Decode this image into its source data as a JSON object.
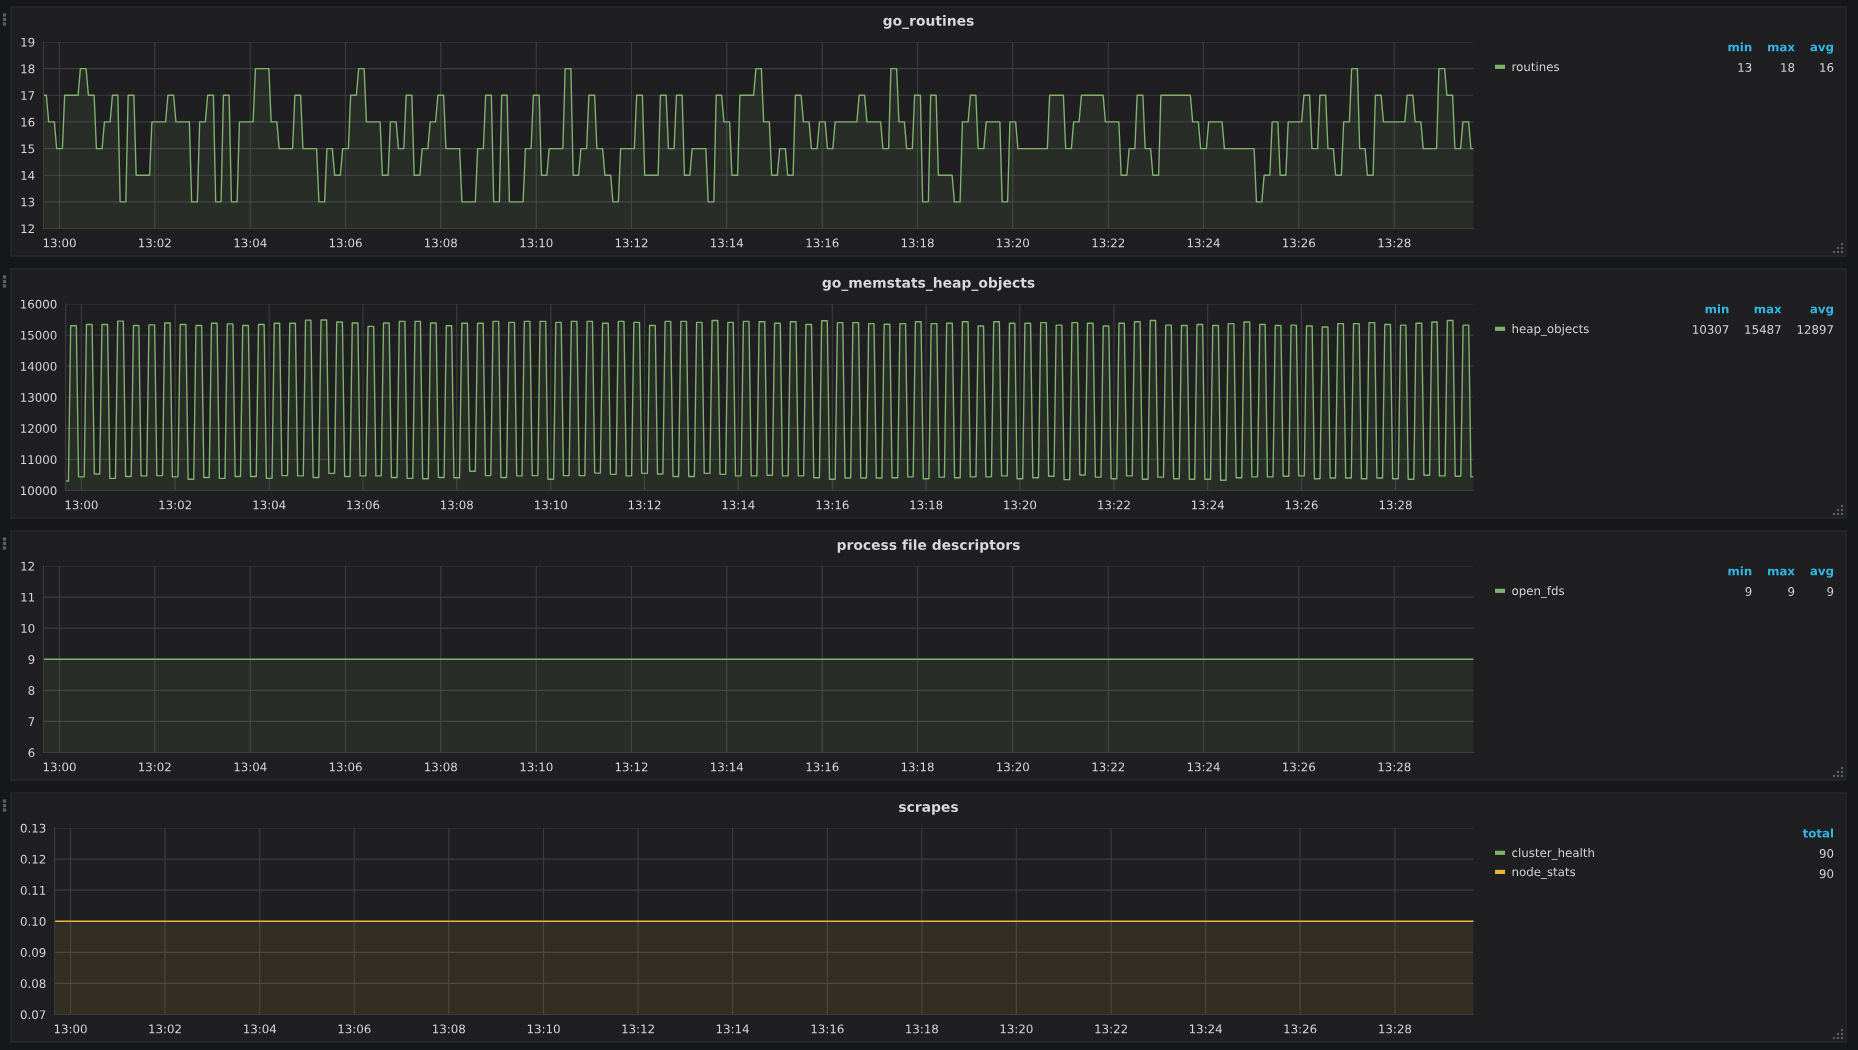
{
  "chart_data": [
    {
      "type": "area",
      "title": "go_routines",
      "xlim": [
        12.9944,
        13.4944
      ],
      "ylim": [
        12,
        19
      ],
      "yticks": [
        12,
        13,
        14,
        15,
        16,
        17,
        18,
        19
      ],
      "grid": true,
      "legend": "right",
      "xticks": [
        {
          "value": 13.0,
          "label": "13:00"
        },
        {
          "value": 13.0333,
          "label": "13:02"
        },
        {
          "value": 13.0667,
          "label": "13:04"
        },
        {
          "value": 13.1,
          "label": "13:06"
        },
        {
          "value": 13.1333,
          "label": "13:08"
        },
        {
          "value": 13.1667,
          "label": "13:10"
        },
        {
          "value": 13.2,
          "label": "13:12"
        },
        {
          "value": 13.2333,
          "label": "13:14"
        },
        {
          "value": 13.2667,
          "label": "13:16"
        },
        {
          "value": 13.3,
          "label": "13:18"
        },
        {
          "value": 13.3333,
          "label": "13:20"
        },
        {
          "value": 13.3667,
          "label": "13:22"
        },
        {
          "value": 13.4,
          "label": "13:24"
        },
        {
          "value": 13.4333,
          "label": "13:26"
        },
        {
          "value": 13.4667,
          "label": "13:28"
        }
      ],
      "x": [
        12.9944,
        12.9954,
        12.9962,
        12.9982,
        12.999,
        13.001,
        13.0018,
        13.0065,
        13.0073,
        13.0093,
        13.0101,
        13.0121,
        13.0129,
        13.0149,
        13.0157,
        13.0177,
        13.0185,
        13.0204,
        13.0212,
        13.0232,
        13.024,
        13.026,
        13.0268,
        13.0315,
        13.0323,
        13.0371,
        13.0379,
        13.0399,
        13.0407,
        13.0454,
        13.0462,
        13.0482,
        13.049,
        13.051,
        13.0518,
        13.0538,
        13.0546,
        13.0565,
        13.0573,
        13.0593,
        13.0601,
        13.0621,
        13.0629,
        13.0677,
        13.0685,
        13.0732,
        13.074,
        13.076,
        13.0768,
        13.0815,
        13.0823,
        13.0843,
        13.0851,
        13.0899,
        13.0907,
        13.0927,
        13.0935,
        13.0954,
        13.0962,
        13.0982,
        13.099,
        13.101,
        13.1018,
        13.1038,
        13.1046,
        13.1065,
        13.1073,
        13.1121,
        13.1129,
        13.1149,
        13.1157,
        13.1177,
        13.1185,
        13.1204,
        13.1212,
        13.1232,
        13.124,
        13.126,
        13.1268,
        13.1288,
        13.1296,
        13.1315,
        13.1323,
        13.1343,
        13.1351,
        13.1399,
        13.1407,
        13.1454,
        13.1462,
        13.1482,
        13.149,
        13.151,
        13.1518,
        13.1538,
        13.1546,
        13.1565,
        13.1573,
        13.1621,
        13.1629,
        13.1649,
        13.1657,
        13.1677,
        13.1685,
        13.1704,
        13.1712,
        13.176,
        13.1768,
        13.1788,
        13.1796,
        13.1815,
        13.1823,
        13.1843,
        13.1851,
        13.1871,
        13.1879,
        13.1899,
        13.1907,
        13.1927,
        13.1935,
        13.1954,
        13.1962,
        13.201,
        13.2018,
        13.2038,
        13.2046,
        13.2093,
        13.2101,
        13.2121,
        13.2129,
        13.2149,
        13.2157,
        13.2177,
        13.2185,
        13.2204,
        13.2212,
        13.226,
        13.2268,
        13.2288,
        13.2296,
        13.2315,
        13.2323,
        13.2343,
        13.2351,
        13.2371,
        13.2379,
        13.2427,
        13.2435,
        13.2454,
        13.2462,
        13.2482,
        13.249,
        13.251,
        13.2518,
        13.2538,
        13.2546,
        13.2565,
        13.2573,
        13.2593,
        13.2601,
        13.2621,
        13.2629,
        13.2649,
        13.2657,
        13.2677,
        13.2685,
        13.2704,
        13.2712,
        13.2788,
        13.2796,
        13.2815,
        13.2823,
        13.2871,
        13.2879,
        13.2899,
        13.2907,
        13.2927,
        13.2935,
        13.2954,
        13.2962,
        13.2982,
        13.299,
        13.301,
        13.3018,
        13.3038,
        13.3046,
        13.3065,
        13.3073,
        13.3121,
        13.3129,
        13.3149,
        13.3157,
        13.3177,
        13.3185,
        13.3204,
        13.3212,
        13.3232,
        13.324,
        13.3288,
        13.3296,
        13.3315,
        13.3323,
        13.3343,
        13.3351,
        13.3454,
        13.3462,
        13.351,
        13.3518,
        13.3538,
        13.3546,
        13.3565,
        13.3573,
        13.3649,
        13.3657,
        13.3704,
        13.3712,
        13.3732,
        13.374,
        13.376,
        13.3768,
        13.3788,
        13.3796,
        13.3815,
        13.3823,
        13.3843,
        13.3851,
        13.3954,
        13.3962,
        13.3982,
        13.399,
        13.401,
        13.4018,
        13.4065,
        13.4073,
        13.4177,
        13.4185,
        13.4204,
        13.4212,
        13.4232,
        13.424,
        13.426,
        13.4268,
        13.4288,
        13.4296,
        13.4343,
        13.4351,
        13.4371,
        13.4379,
        13.4399,
        13.4407,
        13.4427,
        13.4435,
        13.4454,
        13.4462,
        13.4482,
        13.449,
        13.451,
        13.4518,
        13.4538,
        13.4546,
        13.4565,
        13.4573,
        13.4593,
        13.4601,
        13.4621,
        13.4629,
        13.4704,
        13.4712,
        13.4732,
        13.474,
        13.476,
        13.4768,
        13.4815,
        13.4823,
        13.4843,
        13.4851,
        13.4871,
        13.4879,
        13.4899,
        13.4907,
        13.4927,
        13.4935,
        13.4944
      ],
      "series": [
        {
          "name": "routines",
          "color": "#7eb26d",
          "values": [
            17,
            17,
            16,
            16,
            15,
            15,
            17,
            17,
            18,
            18,
            17,
            17,
            15,
            15,
            16,
            16,
            17,
            17,
            13,
            13,
            17,
            17,
            14,
            14,
            16,
            16,
            17,
            17,
            16,
            16,
            13,
            13,
            16,
            16,
            17,
            17,
            13,
            13,
            17,
            17,
            13,
            13,
            16,
            16,
            18,
            18,
            16,
            16,
            15,
            15,
            17,
            17,
            15,
            15,
            13,
            13,
            15,
            15,
            14,
            14,
            15,
            15,
            17,
            17,
            18,
            18,
            16,
            16,
            14,
            14,
            16,
            16,
            15,
            15,
            17,
            17,
            14,
            14,
            15,
            15,
            16,
            16,
            17,
            17,
            15,
            15,
            13,
            13,
            15,
            15,
            17,
            17,
            13,
            13,
            17,
            17,
            13,
            13,
            15,
            15,
            17,
            17,
            14,
            14,
            15,
            15,
            18,
            18,
            14,
            14,
            15,
            15,
            17,
            17,
            15,
            15,
            14,
            14,
            13,
            13,
            15,
            15,
            17,
            17,
            14,
            14,
            17,
            17,
            15,
            15,
            17,
            17,
            14,
            14,
            15,
            15,
            13,
            13,
            17,
            17,
            16,
            16,
            14,
            14,
            17,
            17,
            18,
            18,
            16,
            16,
            14,
            14,
            15,
            15,
            14,
            14,
            17,
            17,
            16,
            16,
            15,
            15,
            16,
            16,
            15,
            15,
            16,
            16,
            17,
            17,
            16,
            16,
            15,
            15,
            18,
            18,
            16,
            16,
            15,
            15,
            17,
            17,
            13,
            13,
            17,
            17,
            14,
            14,
            13,
            13,
            16,
            16,
            17,
            17,
            15,
            15,
            16,
            16,
            13,
            13,
            16,
            16,
            15,
            15,
            17,
            17,
            15,
            15,
            16,
            16,
            17,
            17,
            16,
            16,
            14,
            14,
            15,
            15,
            17,
            17,
            15,
            15,
            14,
            14,
            17,
            17,
            16,
            16,
            15,
            15,
            16,
            16,
            15,
            15,
            13,
            13,
            14,
            14,
            16,
            16,
            14,
            14,
            16,
            16,
            17,
            17,
            15,
            15,
            17,
            17,
            15,
            15,
            14,
            14,
            16,
            16,
            18,
            18,
            15,
            15,
            14,
            14,
            17,
            17,
            16,
            16,
            17,
            17,
            16,
            16,
            15,
            15,
            18,
            18,
            17,
            17,
            15,
            15,
            16,
            16,
            15,
            15
          ]
        }
      ],
      "annotations": [
        "min",
        "max",
        "avg",
        "13",
        "18",
        "16"
      ]
    },
    {
      "type": "area",
      "title": "go_memstats_heap_objects",
      "xlim": [
        12.9944,
        13.4944
      ],
      "ylim": [
        10000,
        16000
      ],
      "yticks": [
        10000,
        11000,
        12000,
        13000,
        14000,
        15000,
        16000
      ],
      "grid": true,
      "legend": "right",
      "xticks": [
        {
          "value": 13.0,
          "label": "13:00"
        },
        {
          "value": 13.0333,
          "label": "13:02"
        },
        {
          "value": 13.0667,
          "label": "13:04"
        },
        {
          "value": 13.1,
          "label": "13:06"
        },
        {
          "value": 13.1333,
          "label": "13:08"
        },
        {
          "value": 13.1667,
          "label": "13:10"
        },
        {
          "value": 13.2,
          "label": "13:12"
        },
        {
          "value": 13.2333,
          "label": "13:14"
        },
        {
          "value": 13.2667,
          "label": "13:16"
        },
        {
          "value": 13.3,
          "label": "13:18"
        },
        {
          "value": 13.3333,
          "label": "13:20"
        },
        {
          "value": 13.3667,
          "label": "13:22"
        },
        {
          "value": 13.4,
          "label": "13:24"
        },
        {
          "value": 13.4333,
          "label": "13:26"
        },
        {
          "value": 13.4667,
          "label": "13:28"
        }
      ],
      "x": [
        12.9944,
        12.9954,
        12.9962,
        12.9982,
        12.999,
        13.001,
        13.0018,
        13.0038,
        13.0046,
        13.0065,
        13.0073,
        13.0093,
        13.0101,
        13.0121,
        13.0129,
        13.0149,
        13.0157,
        13.0177,
        13.0185,
        13.0204,
        13.0212,
        13.0232,
        13.024,
        13.026,
        13.0268,
        13.0288,
        13.0296,
        13.0315,
        13.0323,
        13.0343,
        13.0351,
        13.0371,
        13.0379,
        13.0399,
        13.0407,
        13.0427,
        13.0435,
        13.0454,
        13.0462,
        13.0482,
        13.049,
        13.051,
        13.0518,
        13.0538,
        13.0546,
        13.0565,
        13.0573,
        13.0593,
        13.0601,
        13.0621,
        13.0629,
        13.0649,
        13.0657,
        13.0677,
        13.0685,
        13.0704,
        13.0712,
        13.0732,
        13.074,
        13.076,
        13.0768,
        13.0788,
        13.0796,
        13.0815,
        13.0823,
        13.0843,
        13.0851,
        13.0871,
        13.0879,
        13.0899,
        13.0907,
        13.0927,
        13.0935,
        13.0954,
        13.0962,
        13.0982,
        13.099,
        13.101,
        13.1018,
        13.1038,
        13.1046,
        13.1065,
        13.1073,
        13.1093,
        13.1101,
        13.1121,
        13.1129,
        13.1149,
        13.1157,
        13.1177,
        13.1185,
        13.1204,
        13.1212,
        13.1232,
        13.124,
        13.126,
        13.1268,
        13.1288,
        13.1296,
        13.1315,
        13.1323,
        13.1343,
        13.1351,
        13.1371,
        13.1379,
        13.1399,
        13.1407,
        13.1427,
        13.1435,
        13.1454,
        13.1462,
        13.1482,
        13.149,
        13.151,
        13.1518,
        13.1538,
        13.1546,
        13.1565,
        13.1573,
        13.1593,
        13.1601,
        13.1621,
        13.1629,
        13.1649,
        13.1657,
        13.1677,
        13.1685,
        13.1704,
        13.1712,
        13.1732,
        13.174,
        13.176,
        13.1768,
        13.1788,
        13.1796,
        13.1815,
        13.1823,
        13.1843,
        13.1851,
        13.1871,
        13.1879,
        13.1899,
        13.1907,
        13.1927,
        13.1935,
        13.1954,
        13.1962,
        13.1982,
        13.199,
        13.201,
        13.2018,
        13.2038,
        13.2046,
        13.2065,
        13.2073,
        13.2093,
        13.2101,
        13.2121,
        13.2129,
        13.2149,
        13.2157,
        13.2177,
        13.2185,
        13.2204,
        13.2212,
        13.2232,
        13.224,
        13.226,
        13.2268,
        13.2288,
        13.2296,
        13.2315,
        13.2323,
        13.2343,
        13.2351,
        13.2371,
        13.2379,
        13.2399,
        13.2407,
        13.2427,
        13.2435,
        13.2454,
        13.2462,
        13.2482,
        13.249,
        13.251,
        13.2518,
        13.2538,
        13.2546,
        13.2565,
        13.2573,
        13.2593,
        13.2601,
        13.2621,
        13.2629,
        13.2649,
        13.2657,
        13.2677,
        13.2685,
        13.2704,
        13.2712,
        13.2732,
        13.274,
        13.276,
        13.2768,
        13.2788,
        13.2796,
        13.2815,
        13.2823,
        13.2843,
        13.2851,
        13.2871,
        13.2879,
        13.2899,
        13.2907,
        13.2927,
        13.2935,
        13.2954,
        13.2962,
        13.2982,
        13.299,
        13.301,
        13.3018,
        13.3038,
        13.3046,
        13.3065,
        13.3073,
        13.3093,
        13.3101,
        13.3121,
        13.3129,
        13.3149,
        13.3157,
        13.3177,
        13.3185,
        13.3204,
        13.3212,
        13.3232,
        13.324,
        13.326,
        13.3268,
        13.3288,
        13.3296,
        13.3315,
        13.3323,
        13.3343,
        13.3351,
        13.3371,
        13.3379,
        13.3399,
        13.3407,
        13.3427,
        13.3435,
        13.3454,
        13.3462,
        13.3482,
        13.349,
        13.351,
        13.3518,
        13.3538,
        13.3546,
        13.3565,
        13.3573,
        13.3593,
        13.3601,
        13.3621,
        13.3629,
        13.3649,
        13.3657,
        13.3677,
        13.3685,
        13.3704,
        13.3712,
        13.3732,
        13.374,
        13.376,
        13.3768,
        13.3788,
        13.3796,
        13.3815,
        13.3823,
        13.3843,
        13.3851,
        13.3871,
        13.3879,
        13.3899,
        13.3907,
        13.3927,
        13.3935,
        13.3954,
        13.3962,
        13.3982,
        13.399,
        13.401,
        13.4018,
        13.4038,
        13.4046,
        13.4065,
        13.4073,
        13.4093,
        13.4101,
        13.4121,
        13.4129,
        13.4149,
        13.4157,
        13.4177,
        13.4185,
        13.4204,
        13.4212,
        13.4232,
        13.424,
        13.426,
        13.4268,
        13.4288,
        13.4296,
        13.4315,
        13.4323,
        13.4343,
        13.4351,
        13.4371,
        13.4379,
        13.4399,
        13.4407,
        13.4427,
        13.4435,
        13.4454,
        13.4462,
        13.4482,
        13.449,
        13.451,
        13.4518,
        13.4538,
        13.4546,
        13.4565,
        13.4573,
        13.4593,
        13.4601,
        13.4621,
        13.4629,
        13.4649,
        13.4657,
        13.4677,
        13.4685,
        13.4704,
        13.4712,
        13.4732,
        13.474,
        13.476,
        13.4768,
        13.4788,
        13.4796,
        13.4815,
        13.4823,
        13.4843,
        13.4851,
        13.4871,
        13.4879,
        13.4899,
        13.4907,
        13.4927,
        13.4935,
        13.4944
      ],
      "series": [
        {
          "name": "heap_objects",
          "color": "#7eb26d",
          "values": [
            10307,
            10307,
            15300,
            15300,
            10440,
            10440,
            15340,
            15340,
            10530,
            10530,
            15340,
            15340,
            10390,
            10390,
            15450,
            15450,
            10450,
            10450,
            15310,
            15310,
            10470,
            10470,
            15330,
            15330,
            10480,
            10480,
            15390,
            15390,
            10440,
            10440,
            15340,
            15340,
            10360,
            10360,
            15310,
            15310,
            10420,
            10420,
            15380,
            15380,
            10390,
            10390,
            15360,
            15360,
            10450,
            10450,
            15310,
            15310,
            10450,
            10450,
            15340,
            15340,
            10390,
            10390,
            15380,
            15380,
            10480,
            10480,
            15380,
            15380,
            10470,
            10470,
            15480,
            15480,
            10420,
            10420,
            15487,
            15487,
            10550,
            10550,
            15420,
            15420,
            10450,
            10450,
            15390,
            15390,
            10470,
            10470,
            15280,
            15280,
            10470,
            10470,
            15390,
            15390,
            10420,
            10420,
            15440,
            15440,
            10390,
            10390,
            15440,
            15440,
            10380,
            10380,
            15390,
            15390,
            10420,
            10420,
            15300,
            15300,
            10410,
            10410,
            15380,
            15380,
            10620,
            10620,
            15380,
            15380,
            10480,
            10480,
            15440,
            15440,
            10420,
            10420,
            15410,
            15410,
            10470,
            10470,
            15440,
            15440,
            10480,
            10480,
            15440,
            15440,
            10360,
            10360,
            15410,
            15410,
            10480,
            10480,
            15440,
            15440,
            10480,
            10480,
            15440,
            15440,
            10560,
            10560,
            15380,
            15380,
            10520,
            10520,
            15440,
            15440,
            10470,
            10470,
            15410,
            15410,
            10550,
            10550,
            15310,
            15310,
            10530,
            10530,
            15440,
            15440,
            10450,
            10450,
            15440,
            15440,
            10450,
            10450,
            15410,
            15410,
            10550,
            10550,
            15470,
            15470,
            10520,
            10520,
            15410,
            15410,
            10470,
            10470,
            15440,
            15440,
            10470,
            10470,
            15430,
            15430,
            10490,
            10490,
            15380,
            15380,
            10470,
            10470,
            15430,
            15430,
            10470,
            10470,
            15340,
            15340,
            10410,
            10410,
            15460,
            15460,
            10360,
            10360,
            15400,
            15400,
            10400,
            10400,
            15400,
            15400,
            10400,
            10400,
            15370,
            15370,
            10400,
            10400,
            15350,
            15350,
            10410,
            10410,
            15370,
            15370,
            10440,
            10440,
            15430,
            15430,
            10380,
            10380,
            15370,
            15370,
            10430,
            10430,
            15380,
            15380,
            10410,
            10410,
            15430,
            15430,
            10440,
            10440,
            15290,
            15290,
            10440,
            10440,
            15430,
            15430,
            10470,
            10470,
            15380,
            15380,
            10380,
            10380,
            15380,
            15380,
            10410,
            10410,
            15400,
            15400,
            10460,
            10460,
            15320,
            15320,
            10350,
            10350,
            15400,
            15400,
            10500,
            10500,
            15380,
            15380,
            10430,
            10430,
            15290,
            15290,
            10380,
            10380,
            15380,
            15380,
            10470,
            10470,
            15430,
            15430,
            10360,
            10360,
            15470,
            15470,
            10430,
            10430,
            15320,
            15320,
            10380,
            10380,
            15310,
            15310,
            10360,
            10360,
            15340,
            15340,
            10360,
            10360,
            15310,
            15310,
            10330,
            10330,
            15370,
            15370,
            10410,
            10410,
            15420,
            15420,
            10440,
            10440,
            15340,
            15340,
            10440,
            10440,
            15310,
            15310,
            10460,
            10460,
            15320,
            15320,
            10470,
            10470,
            15290,
            15290,
            10380,
            10380,
            15260,
            15260,
            10400,
            10400,
            15370,
            15370,
            10400,
            10400,
            15370,
            15370,
            10380,
            10380,
            15400,
            15400,
            10400,
            10400,
            15340,
            15340,
            10380,
            10380,
            15320,
            15320,
            10360,
            10360,
            15380,
            15380,
            10490,
            10490,
            15420,
            15420,
            10470,
            10470,
            15470,
            15470,
            10460,
            10460,
            15320,
            15320,
            10440,
            10440
          ]
        }
      ],
      "annotations": [
        "min",
        "max",
        "avg",
        "10307",
        "15487",
        "12897"
      ]
    },
    {
      "type": "area",
      "title": "process file descriptors",
      "xlim": [
        12.9944,
        13.4944
      ],
      "ylim": [
        6,
        12
      ],
      "yticks": [
        6,
        7,
        8,
        9,
        10,
        11,
        12
      ],
      "grid": true,
      "legend": "right",
      "xticks": [
        {
          "value": 13.0,
          "label": "13:00"
        },
        {
          "value": 13.0333,
          "label": "13:02"
        },
        {
          "value": 13.0667,
          "label": "13:04"
        },
        {
          "value": 13.1,
          "label": "13:06"
        },
        {
          "value": 13.1333,
          "label": "13:08"
        },
        {
          "value": 13.1667,
          "label": "13:10"
        },
        {
          "value": 13.2,
          "label": "13:12"
        },
        {
          "value": 13.2333,
          "label": "13:14"
        },
        {
          "value": 13.2667,
          "label": "13:16"
        },
        {
          "value": 13.3,
          "label": "13:18"
        },
        {
          "value": 13.3333,
          "label": "13:20"
        },
        {
          "value": 13.3667,
          "label": "13:22"
        },
        {
          "value": 13.4,
          "label": "13:24"
        },
        {
          "value": 13.4333,
          "label": "13:26"
        },
        {
          "value": 13.4667,
          "label": "13:28"
        }
      ],
      "x": [
        12.9944,
        13.4944
      ],
      "series": [
        {
          "name": "open_fds",
          "color": "#7eb26d",
          "values": [
            9,
            9
          ]
        }
      ],
      "annotations": [
        "min",
        "max",
        "avg",
        "9",
        "9",
        "9"
      ]
    },
    {
      "type": "area",
      "title": "scrapes",
      "xlim": [
        12.9944,
        13.4944
      ],
      "ylim": [
        0.07,
        0.13
      ],
      "yticks": [
        0.07,
        0.08,
        0.09,
        {
          "value": 0.1,
          "label": "0.10"
        },
        0.11,
        0.12,
        0.13
      ],
      "grid": true,
      "legend": "right",
      "xticks": [
        {
          "value": 13.0,
          "label": "13:00"
        },
        {
          "value": 13.0333,
          "label": "13:02"
        },
        {
          "value": 13.0667,
          "label": "13:04"
        },
        {
          "value": 13.1,
          "label": "13:06"
        },
        {
          "value": 13.1333,
          "label": "13:08"
        },
        {
          "value": 13.1667,
          "label": "13:10"
        },
        {
          "value": 13.2,
          "label": "13:12"
        },
        {
          "value": 13.2333,
          "label": "13:14"
        },
        {
          "value": 13.2667,
          "label": "13:16"
        },
        {
          "value": 13.3,
          "label": "13:18"
        },
        {
          "value": 13.3333,
          "label": "13:20"
        },
        {
          "value": 13.3667,
          "label": "13:22"
        },
        {
          "value": 13.4,
          "label": "13:24"
        },
        {
          "value": 13.4333,
          "label": "13:26"
        },
        {
          "value": 13.4667,
          "label": "13:28"
        }
      ],
      "x": [
        12.9944,
        13.4944
      ],
      "series": [
        {
          "name": "cluster_health",
          "color": "#7eb26d",
          "values": [
            null,
            null
          ]
        },
        {
          "name": "node_stats",
          "color": "#eab839",
          "values": [
            0.1,
            0.1
          ]
        }
      ],
      "annotations": [
        "total",
        "90",
        "90"
      ]
    }
  ]
}
